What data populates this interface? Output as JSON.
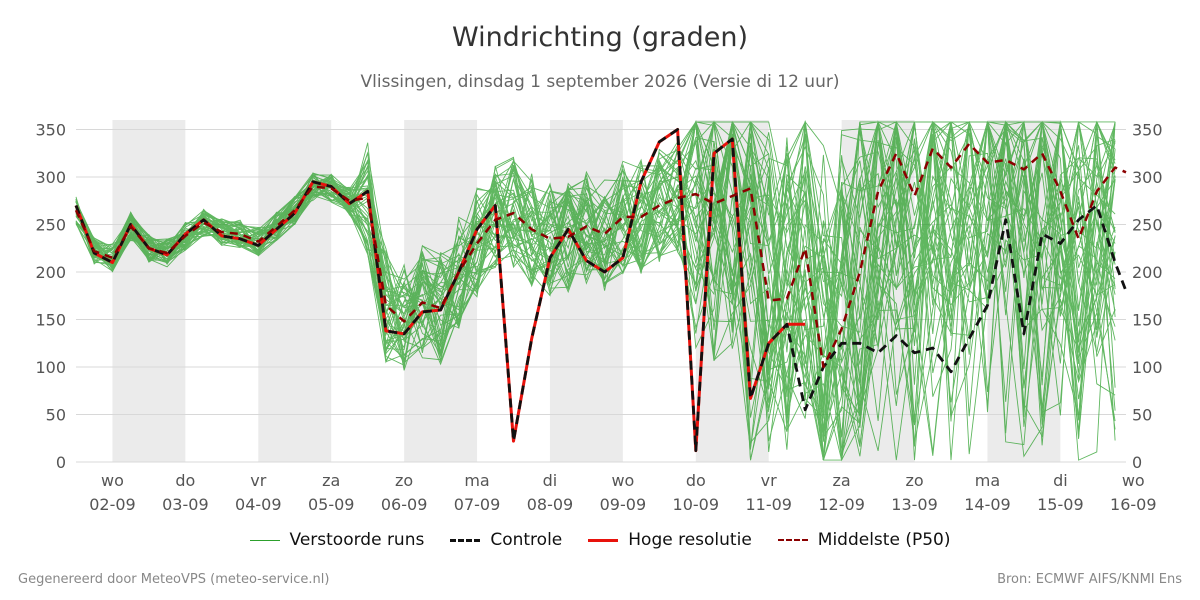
{
  "header": {
    "title": "Windrichting (graden)",
    "subtitle": "Vlissingen, dinsdag  1 september 2026 (Versie di 12 uur)"
  },
  "footer": {
    "left": "Gegenereerd door MeteoVPS (meteo-service.nl)",
    "right": "Bron: ECMWF AIFS/KNMI Ens"
  },
  "legend": {
    "ensemble": "Verstoorde runs",
    "control": "Controle",
    "hires": "Hoge resolutie",
    "median": "Middelste (P50)"
  },
  "colors": {
    "ensemble": "#2ca02c",
    "control": "#111111",
    "hires": "#e8120c",
    "median": "#8b0000",
    "shade": "#ebebeb",
    "grid": "#d8d8d8"
  },
  "chart_data": {
    "type": "line",
    "x_unit": "days since 2026-09-01 00:00",
    "xlim": [
      1.5,
      15.9
    ],
    "ylim": [
      0,
      360
    ],
    "yticks": [
      0,
      50,
      100,
      150,
      200,
      250,
      300,
      350
    ],
    "xticks": [
      {
        "x": 2,
        "day": "wo",
        "date": "02-09"
      },
      {
        "x": 3,
        "day": "do",
        "date": "03-09"
      },
      {
        "x": 4,
        "day": "vr",
        "date": "04-09"
      },
      {
        "x": 5,
        "day": "za",
        "date": "05-09"
      },
      {
        "x": 6,
        "day": "zo",
        "date": "06-09"
      },
      {
        "x": 7,
        "day": "ma",
        "date": "07-09"
      },
      {
        "x": 8,
        "day": "di",
        "date": "08-09"
      },
      {
        "x": 9,
        "day": "wo",
        "date": "09-09"
      },
      {
        "x": 10,
        "day": "do",
        "date": "10-09"
      },
      {
        "x": 11,
        "day": "vr",
        "date": "11-09"
      },
      {
        "x": 12,
        "day": "za",
        "date": "12-09"
      },
      {
        "x": 13,
        "day": "zo",
        "date": "13-09"
      },
      {
        "x": 14,
        "day": "ma",
        "date": "14-09"
      },
      {
        "x": 15,
        "day": "di",
        "date": "15-09"
      },
      {
        "x": 16,
        "day": "wo",
        "date": "16-09"
      }
    ],
    "shaded_days": [
      [
        2,
        3
      ],
      [
        4,
        5
      ],
      [
        6,
        7
      ],
      [
        8,
        9
      ],
      [
        10,
        11
      ],
      [
        12,
        13
      ],
      [
        14,
        15
      ],
      [
        16,
        16.5
      ]
    ],
    "series": [
      {
        "name": "Hoge resolutie",
        "x": [
          1.5,
          1.75,
          2,
          2.25,
          2.5,
          2.75,
          3,
          3.25,
          3.5,
          3.75,
          4,
          4.25,
          4.5,
          4.75,
          5,
          5.25,
          5.5,
          5.75,
          6,
          6.25,
          6.5,
          6.75,
          7,
          7.25,
          7.5,
          7.75,
          8,
          8.25,
          8.5,
          8.75,
          9,
          9.25,
          9.5,
          9.75,
          10,
          10.25,
          10.5,
          10.75,
          11,
          11.25,
          11.5
        ],
        "values": [
          270,
          220,
          210,
          250,
          225,
          218,
          240,
          255,
          238,
          235,
          228,
          245,
          262,
          295,
          290,
          272,
          285,
          138,
          135,
          158,
          160,
          200,
          245,
          270,
          22,
          130,
          215,
          245,
          212,
          200,
          215,
          295,
          337,
          350,
          12,
          325,
          340,
          67,
          125,
          145,
          145
        ]
      },
      {
        "name": "Controle",
        "x": [
          1.5,
          1.75,
          2,
          2.25,
          2.5,
          2.75,
          3,
          3.25,
          3.5,
          3.75,
          4,
          4.25,
          4.5,
          4.75,
          5,
          5.25,
          5.5,
          5.75,
          6,
          6.25,
          6.5,
          6.75,
          7,
          7.25,
          7.5,
          7.75,
          8,
          8.25,
          8.5,
          8.75,
          9,
          9.25,
          9.5,
          9.75,
          10,
          10.25,
          10.5,
          10.75,
          11,
          11.25,
          11.5,
          11.75,
          12,
          12.25,
          12.5,
          12.75,
          13,
          13.25,
          13.5,
          13.75,
          14,
          14.25,
          14.5,
          14.75,
          15,
          15.25,
          15.5,
          15.75,
          15.9
        ],
        "values": [
          270,
          220,
          210,
          250,
          225,
          218,
          240,
          255,
          238,
          235,
          228,
          245,
          262,
          295,
          290,
          272,
          285,
          138,
          135,
          158,
          160,
          200,
          245,
          270,
          22,
          130,
          215,
          245,
          212,
          200,
          215,
          295,
          337,
          350,
          12,
          325,
          340,
          67,
          125,
          145,
          55,
          100,
          125,
          125,
          115,
          133,
          115,
          120,
          95,
          130,
          165,
          255,
          135,
          240,
          230,
          255,
          270,
          210,
          180
        ]
      },
      {
        "name": "Middelste (P50)",
        "x": [
          1.5,
          1.75,
          2,
          2.25,
          2.5,
          2.75,
          3,
          3.25,
          3.5,
          3.75,
          4,
          4.25,
          4.5,
          4.75,
          5,
          5.25,
          5.5,
          5.75,
          6,
          6.25,
          6.5,
          6.75,
          7,
          7.25,
          7.5,
          7.75,
          8,
          8.25,
          8.5,
          8.75,
          9,
          9.25,
          9.5,
          9.75,
          10,
          10.25,
          10.5,
          10.75,
          11,
          11.25,
          11.5,
          11.75,
          12,
          12.25,
          12.5,
          12.75,
          13,
          13.25,
          13.5,
          13.75,
          14,
          14.25,
          14.5,
          14.75,
          15,
          15.25,
          15.5,
          15.75,
          15.9
        ],
        "values": [
          265,
          222,
          215,
          248,
          225,
          220,
          238,
          252,
          242,
          240,
          232,
          248,
          265,
          290,
          288,
          275,
          278,
          165,
          148,
          168,
          162,
          200,
          230,
          255,
          262,
          245,
          235,
          237,
          248,
          240,
          258,
          258,
          270,
          278,
          282,
          272,
          280,
          288,
          170,
          172,
          225,
          100,
          140,
          200,
          285,
          325,
          280,
          330,
          310,
          335,
          315,
          318,
          308,
          325,
          285,
          235,
          285,
          310,
          305
        ]
      }
    ]
  }
}
